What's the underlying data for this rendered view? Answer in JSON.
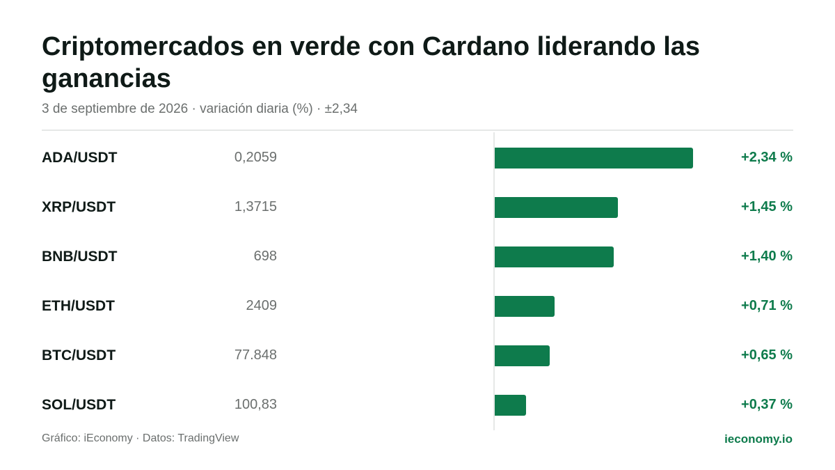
{
  "header": {
    "title": "Criptomercados en verde con Cardano liderando las ganancias",
    "subtitle": "3 de septiembre de 2026 · variación diaria (%) · ±2,34"
  },
  "footer": {
    "credit": "Gráfico: iEconomy · Datos: TradingView",
    "brand": "ieconomy.io"
  },
  "colors": {
    "bar": "#0e7b4c",
    "change_text": "#0e7b4c",
    "muted_text": "#6b6f6e"
  },
  "chart_data": {
    "type": "bar",
    "orientation": "horizontal",
    "title": "Criptomercados en verde con Cardano liderando las ganancias",
    "subtitle": "3 de septiembre de 2026 · variación diaria (%) · ±2,34",
    "xlim": [
      -2.34,
      2.34
    ],
    "categories": [
      "ADA/USDT",
      "XRP/USDT",
      "BNB/USDT",
      "ETH/USDT",
      "BTC/USDT",
      "SOL/USDT"
    ],
    "rows": [
      {
        "pair": "ADA/USDT",
        "price": "0,2059",
        "value": 2.34,
        "label": "+2,34 %"
      },
      {
        "pair": "XRP/USDT",
        "price": "1,3715",
        "value": 1.45,
        "label": "+1,45 %"
      },
      {
        "pair": "BNB/USDT",
        "price": "698",
        "value": 1.4,
        "label": "+1,40 %"
      },
      {
        "pair": "ETH/USDT",
        "price": "2409",
        "value": 0.71,
        "label": "+0,71 %"
      },
      {
        "pair": "BTC/USDT",
        "price": "77.848",
        "value": 0.65,
        "label": "+0,65 %"
      },
      {
        "pair": "SOL/USDT",
        "price": "100,83",
        "value": 0.37,
        "label": "+0,37 %"
      }
    ]
  }
}
